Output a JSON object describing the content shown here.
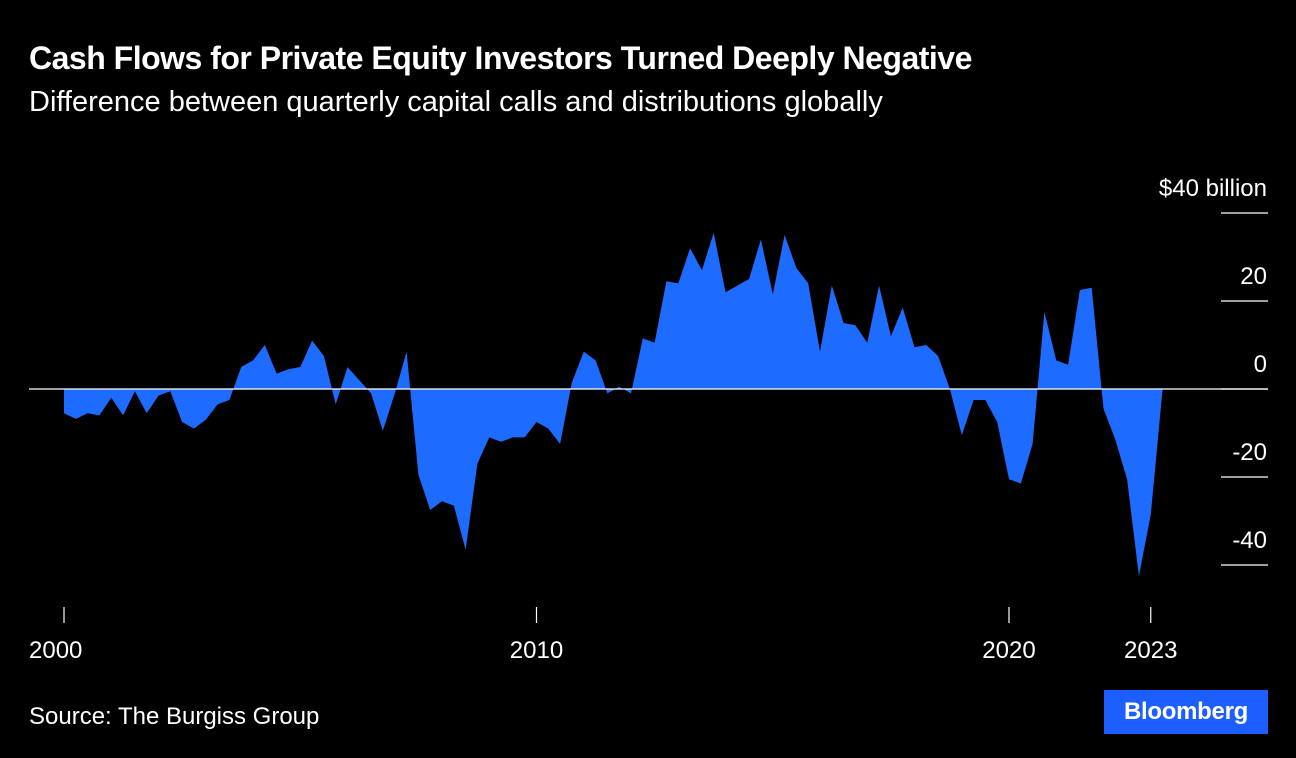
{
  "header": {
    "title": "Cash Flows for Private Equity Investors Turned Deeply Negative",
    "subtitle": "Difference between quarterly capital calls and distributions globally"
  },
  "footer": {
    "source": "Source: The Burgiss Group",
    "brand": "Bloomberg"
  },
  "colors": {
    "background": "#000000",
    "area_fill": "#1d6bff",
    "text": "#ffffff",
    "brand_box": "#1d5eff"
  },
  "chart_data": {
    "type": "area",
    "ylim": [
      -48,
      40
    ],
    "y_ticks": [
      40,
      20,
      0,
      -20,
      -40
    ],
    "y_tick_labels": [
      "$40 billion",
      "20",
      "0",
      "-20",
      "-40"
    ],
    "x_ticks": [
      2000,
      2010,
      2020,
      2023
    ],
    "x_tick_labels": [
      "2000",
      "2010",
      "2020",
      "2023"
    ],
    "xlim": [
      1999.3,
      2025.8
    ],
    "zero_line": true,
    "grid": false,
    "series": [
      {
        "x": [
          2000.0,
          2000.25,
          2000.5,
          2000.75,
          2001.0,
          2001.25,
          2001.5,
          2001.75,
          2002.0,
          2002.25,
          2002.5,
          2002.75,
          2003.0,
          2003.25,
          2003.5,
          2003.75,
          2004.0,
          2004.25,
          2004.5,
          2004.75,
          2005.0,
          2005.25,
          2005.5,
          2005.75,
          2006.0,
          2006.25,
          2006.5,
          2006.75,
          2007.0,
          2007.25,
          2007.5,
          2007.75,
          2008.0,
          2008.25,
          2008.5,
          2008.75,
          2009.0,
          2009.25,
          2009.5,
          2009.75,
          2010.0,
          2010.25,
          2010.5,
          2010.75,
          2011.0,
          2011.25,
          2011.5,
          2011.75,
          2012.0,
          2012.25,
          2012.5,
          2012.75,
          2013.0,
          2013.25,
          2013.5,
          2013.75,
          2014.0,
          2014.25,
          2014.5,
          2014.75,
          2015.0,
          2015.25,
          2015.5,
          2015.75,
          2016.0,
          2016.25,
          2016.5,
          2016.75,
          2017.0,
          2017.25,
          2017.5,
          2017.75,
          2018.0,
          2018.25,
          2018.5,
          2018.75,
          2019.0,
          2019.25,
          2019.5,
          2019.75,
          2020.0,
          2020.25,
          2020.5,
          2020.75,
          2021.0,
          2021.25,
          2021.5,
          2021.75,
          2022.0,
          2022.25,
          2022.5,
          2022.75,
          2023.0,
          2023.25
        ],
        "values": [
          -5.5,
          -6.8,
          -5.5,
          -6.0,
          -2.0,
          -6.0,
          -0.5,
          -5.5,
          -1.5,
          -0.5,
          -7.5,
          -9.0,
          -7.0,
          -3.5,
          -2.5,
          5.0,
          6.5,
          10.0,
          3.5,
          4.5,
          5.0,
          11.0,
          7.5,
          -3.5,
          5.0,
          2.0,
          -1.0,
          -9.5,
          -1.0,
          8.5,
          -19.5,
          -27.5,
          -25.5,
          -26.5,
          -36.5,
          -17.0,
          -11.0,
          -12.0,
          -11.0,
          -11.0,
          -7.5,
          -9.0,
          -12.5,
          1.5,
          8.5,
          6.5,
          -1.0,
          0.5,
          -1.0,
          11.5,
          10.5,
          24.5,
          24.0,
          32.0,
          27.0,
          35.5,
          22.0,
          23.5,
          25.0,
          34.0,
          21.5,
          35.0,
          27.5,
          24.0,
          8.5,
          23.5,
          15.0,
          14.5,
          10.5,
          23.5,
          12.0,
          18.5,
          9.5,
          10.0,
          7.5,
          0.0,
          -10.5,
          -2.5,
          -2.5,
          -7.5,
          -20.5,
          -21.5,
          -12.5,
          17.5,
          6.5,
          5.5,
          22.5,
          23.0,
          -4.5,
          -11.5,
          -20.5,
          -42.5,
          -28.5,
          0.0
        ]
      }
    ]
  }
}
